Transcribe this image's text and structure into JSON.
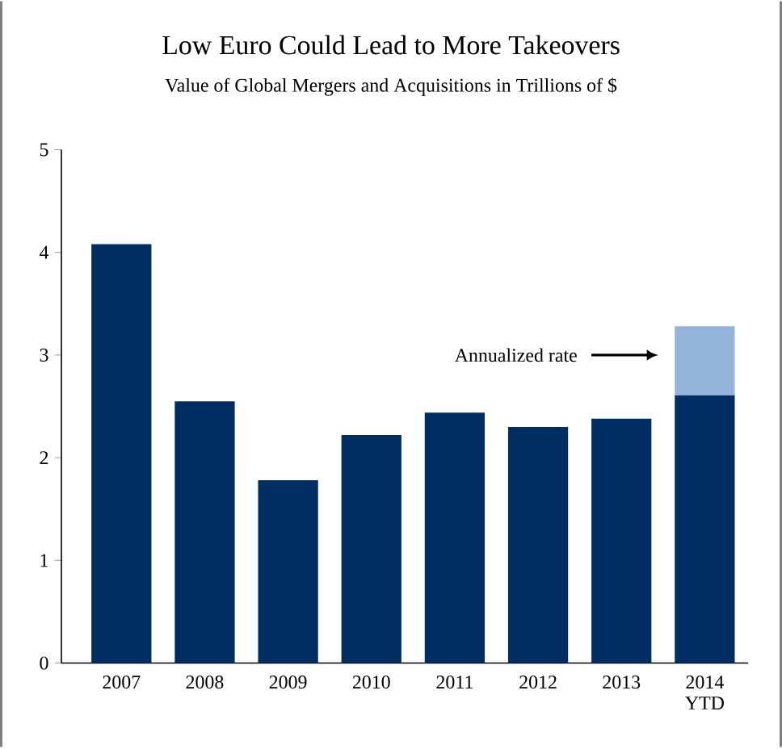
{
  "chart_data": {
    "type": "bar",
    "title": "Low Euro Could Lead to More Takeovers",
    "subtitle": "Value of Global Mergers and Acquisitions in Trillions of $",
    "categories": [
      "2007",
      "2008",
      "2009",
      "2010",
      "2011",
      "2012",
      "2013",
      "2014 YTD"
    ],
    "stacked": true,
    "series": [
      {
        "color": "#002d62",
        "values": [
          4.08,
          2.55,
          1.78,
          2.22,
          2.44,
          2.3,
          2.38,
          2.61
        ]
      },
      {
        "color": "#93b3d9",
        "values": [
          null,
          null,
          null,
          null,
          null,
          null,
          null,
          0.67
        ]
      }
    ],
    "ylim": [
      0,
      5
    ],
    "yticks": [
      0,
      1,
      2,
      3,
      4,
      5
    ],
    "annotations": [
      "Annualized rate"
    ]
  }
}
